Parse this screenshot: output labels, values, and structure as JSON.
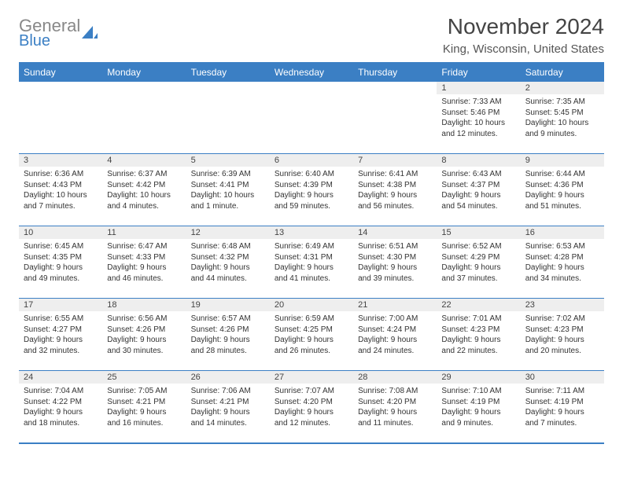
{
  "logo": {
    "general": "General",
    "blue": "Blue"
  },
  "title": "November 2024",
  "location": "King, Wisconsin, United States",
  "colors": {
    "accent": "#3b7fc4",
    "header_text": "#ffffff",
    "daynum_bg": "#eeeeee",
    "text": "#333333",
    "title_text": "#444444",
    "logo_gray": "#888888"
  },
  "day_headers": [
    "Sunday",
    "Monday",
    "Tuesday",
    "Wednesday",
    "Thursday",
    "Friday",
    "Saturday"
  ],
  "weeks": [
    [
      {
        "n": "",
        "sr": "",
        "ss": "",
        "dl": ""
      },
      {
        "n": "",
        "sr": "",
        "ss": "",
        "dl": ""
      },
      {
        "n": "",
        "sr": "",
        "ss": "",
        "dl": ""
      },
      {
        "n": "",
        "sr": "",
        "ss": "",
        "dl": ""
      },
      {
        "n": "",
        "sr": "",
        "ss": "",
        "dl": ""
      },
      {
        "n": "1",
        "sr": "7:33 AM",
        "ss": "5:46 PM",
        "dl": "10 hours and 12 minutes."
      },
      {
        "n": "2",
        "sr": "7:35 AM",
        "ss": "5:45 PM",
        "dl": "10 hours and 9 minutes."
      }
    ],
    [
      {
        "n": "3",
        "sr": "6:36 AM",
        "ss": "4:43 PM",
        "dl": "10 hours and 7 minutes."
      },
      {
        "n": "4",
        "sr": "6:37 AM",
        "ss": "4:42 PM",
        "dl": "10 hours and 4 minutes."
      },
      {
        "n": "5",
        "sr": "6:39 AM",
        "ss": "4:41 PM",
        "dl": "10 hours and 1 minute."
      },
      {
        "n": "6",
        "sr": "6:40 AM",
        "ss": "4:39 PM",
        "dl": "9 hours and 59 minutes."
      },
      {
        "n": "7",
        "sr": "6:41 AM",
        "ss": "4:38 PM",
        "dl": "9 hours and 56 minutes."
      },
      {
        "n": "8",
        "sr": "6:43 AM",
        "ss": "4:37 PM",
        "dl": "9 hours and 54 minutes."
      },
      {
        "n": "9",
        "sr": "6:44 AM",
        "ss": "4:36 PM",
        "dl": "9 hours and 51 minutes."
      }
    ],
    [
      {
        "n": "10",
        "sr": "6:45 AM",
        "ss": "4:35 PM",
        "dl": "9 hours and 49 minutes."
      },
      {
        "n": "11",
        "sr": "6:47 AM",
        "ss": "4:33 PM",
        "dl": "9 hours and 46 minutes."
      },
      {
        "n": "12",
        "sr": "6:48 AM",
        "ss": "4:32 PM",
        "dl": "9 hours and 44 minutes."
      },
      {
        "n": "13",
        "sr": "6:49 AM",
        "ss": "4:31 PM",
        "dl": "9 hours and 41 minutes."
      },
      {
        "n": "14",
        "sr": "6:51 AM",
        "ss": "4:30 PM",
        "dl": "9 hours and 39 minutes."
      },
      {
        "n": "15",
        "sr": "6:52 AM",
        "ss": "4:29 PM",
        "dl": "9 hours and 37 minutes."
      },
      {
        "n": "16",
        "sr": "6:53 AM",
        "ss": "4:28 PM",
        "dl": "9 hours and 34 minutes."
      }
    ],
    [
      {
        "n": "17",
        "sr": "6:55 AM",
        "ss": "4:27 PM",
        "dl": "9 hours and 32 minutes."
      },
      {
        "n": "18",
        "sr": "6:56 AM",
        "ss": "4:26 PM",
        "dl": "9 hours and 30 minutes."
      },
      {
        "n": "19",
        "sr": "6:57 AM",
        "ss": "4:26 PM",
        "dl": "9 hours and 28 minutes."
      },
      {
        "n": "20",
        "sr": "6:59 AM",
        "ss": "4:25 PM",
        "dl": "9 hours and 26 minutes."
      },
      {
        "n": "21",
        "sr": "7:00 AM",
        "ss": "4:24 PM",
        "dl": "9 hours and 24 minutes."
      },
      {
        "n": "22",
        "sr": "7:01 AM",
        "ss": "4:23 PM",
        "dl": "9 hours and 22 minutes."
      },
      {
        "n": "23",
        "sr": "7:02 AM",
        "ss": "4:23 PM",
        "dl": "9 hours and 20 minutes."
      }
    ],
    [
      {
        "n": "24",
        "sr": "7:04 AM",
        "ss": "4:22 PM",
        "dl": "9 hours and 18 minutes."
      },
      {
        "n": "25",
        "sr": "7:05 AM",
        "ss": "4:21 PM",
        "dl": "9 hours and 16 minutes."
      },
      {
        "n": "26",
        "sr": "7:06 AM",
        "ss": "4:21 PM",
        "dl": "9 hours and 14 minutes."
      },
      {
        "n": "27",
        "sr": "7:07 AM",
        "ss": "4:20 PM",
        "dl": "9 hours and 12 minutes."
      },
      {
        "n": "28",
        "sr": "7:08 AM",
        "ss": "4:20 PM",
        "dl": "9 hours and 11 minutes."
      },
      {
        "n": "29",
        "sr": "7:10 AM",
        "ss": "4:19 PM",
        "dl": "9 hours and 9 minutes."
      },
      {
        "n": "30",
        "sr": "7:11 AM",
        "ss": "4:19 PM",
        "dl": "9 hours and 7 minutes."
      }
    ]
  ],
  "labels": {
    "sunrise": "Sunrise:",
    "sunset": "Sunset:",
    "daylight": "Daylight:"
  }
}
